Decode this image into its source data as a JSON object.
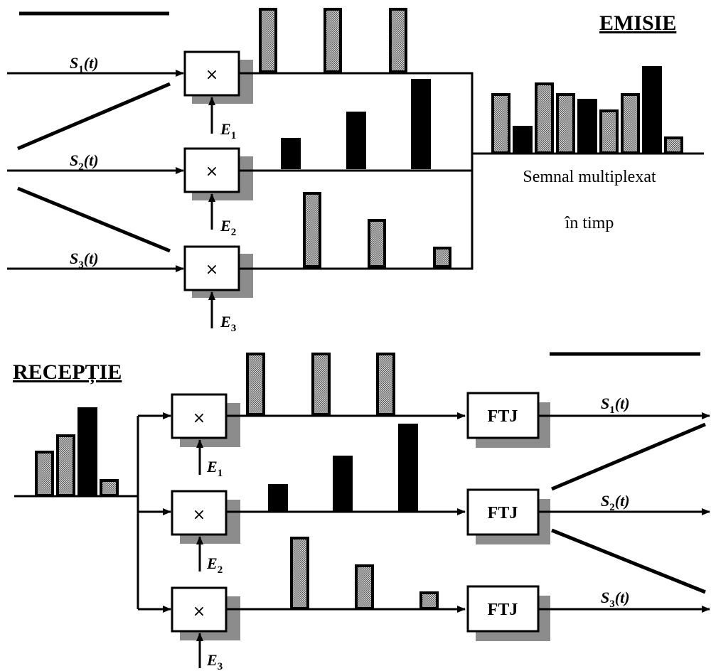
{
  "emission": {
    "title": "EMISIE",
    "inputs": [
      {
        "signal": "S",
        "index": "1",
        "arg": "(t)",
        "carrier": "E",
        "carrier_index": "1"
      },
      {
        "signal": "S",
        "index": "2",
        "arg": "(t)",
        "carrier": "E",
        "carrier_index": "2"
      },
      {
        "signal": "S",
        "index": "3",
        "arg": "(t)",
        "carrier": "E",
        "carrier_index": "3"
      }
    ],
    "multiplier_symbol": "×",
    "caption_line1": "Semnal multiplexat",
    "caption_line2": "în timp"
  },
  "reception": {
    "title": "RECEPȚIE",
    "filter_label": "FTJ",
    "multiplier_symbol": "×",
    "outputs": [
      {
        "signal": "S",
        "index": "1",
        "arg": "(t)",
        "carrier": "E",
        "carrier_index": "1"
      },
      {
        "signal": "S",
        "index": "2",
        "arg": "(t)",
        "carrier": "E",
        "carrier_index": "2"
      },
      {
        "signal": "S",
        "index": "3",
        "arg": "(t)",
        "carrier": "E",
        "carrier_index": "3"
      }
    ]
  },
  "colors": {
    "line": "#000000",
    "shadow": "#8c8c8c",
    "hatched_fill": "#a6a6a6",
    "solid_fill": "#000000",
    "background": "#ffffff"
  }
}
